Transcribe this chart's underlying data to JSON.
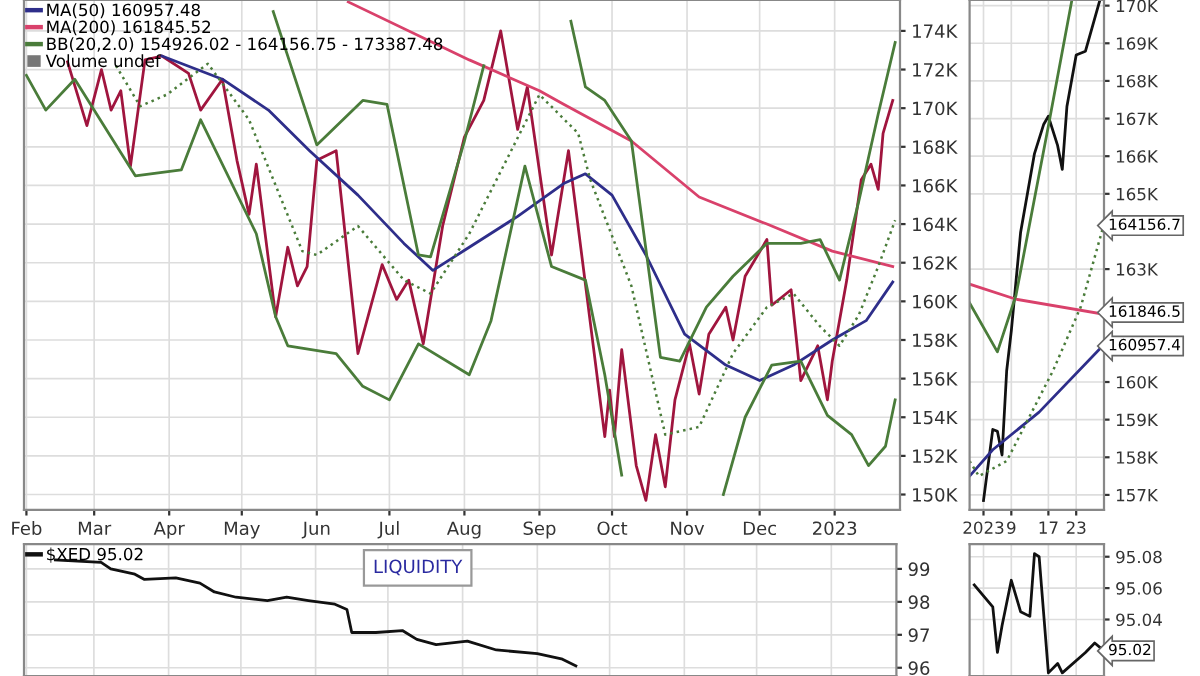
{
  "chart_data": [
    {
      "type": "line",
      "legend": "top left",
      "grid": true,
      "annotations": [
        "Volume undef"
      ],
      "xlim": [
        "2022-01-31",
        "2023-01-28"
      ],
      "xticks": [
        {
          "value": "2022-02-01",
          "label": "Feb"
        },
        {
          "value": "2022-03-01",
          "label": "Mar"
        },
        {
          "value": "2022-04-01",
          "label": "Apr"
        },
        {
          "value": "2022-05-01",
          "label": "May"
        },
        {
          "value": "2022-06-01",
          "label": "Jun"
        },
        {
          "value": "2022-07-01",
          "label": "Jul"
        },
        {
          "value": "2022-08-01",
          "label": "Aug"
        },
        {
          "value": "2022-09-01",
          "label": "Sep"
        },
        {
          "value": "2022-10-01",
          "label": "Oct"
        },
        {
          "value": "2022-11-01",
          "label": "Nov"
        },
        {
          "value": "2022-12-01",
          "label": "Dec"
        },
        {
          "value": "2023-01-01",
          "label": "2023"
        }
      ],
      "ylim": [
        149200,
        175600
      ],
      "yticks": [
        {
          "value": 150000,
          "label": "150K"
        },
        {
          "value": 152000,
          "label": "152K"
        },
        {
          "value": 154000,
          "label": "154K"
        },
        {
          "value": 156000,
          "label": "156K"
        },
        {
          "value": 158000,
          "label": "158K"
        },
        {
          "value": 160000,
          "label": "160K"
        },
        {
          "value": 162000,
          "label": "162K"
        },
        {
          "value": 164000,
          "label": "164K"
        },
        {
          "value": 166000,
          "label": "166K"
        },
        {
          "value": 168000,
          "label": "168K"
        },
        {
          "value": 170000,
          "label": "170K"
        },
        {
          "value": 172000,
          "label": "172K"
        },
        {
          "value": 174000,
          "label": "174K"
        }
      ],
      "series": [
        {
          "color": "#a0153e",
          "x": [
            "2022-02-18",
            "2022-02-26",
            "2022-03-04",
            "2022-03-08",
            "2022-03-12",
            "2022-03-16",
            "2022-03-22",
            "2022-03-29",
            "2022-04-09",
            "2022-04-14",
            "2022-04-23",
            "2022-04-29",
            "2022-05-04",
            "2022-05-07",
            "2022-05-15",
            "2022-05-20",
            "2022-05-24",
            "2022-05-28",
            "2022-06-01",
            "2022-06-09",
            "2022-06-18",
            "2022-06-28",
            "2022-07-04",
            "2022-07-09",
            "2022-07-15",
            "2022-07-23",
            "2022-08-01",
            "2022-08-09",
            "2022-08-16",
            "2022-08-23",
            "2022-08-27",
            "2022-09-06",
            "2022-09-13",
            "2022-09-28",
            "2022-09-30",
            "2022-10-02",
            "2022-10-05",
            "2022-10-11",
            "2022-10-15",
            "2022-10-19",
            "2022-10-23",
            "2022-10-27",
            "2022-11-02",
            "2022-11-06",
            "2022-11-10",
            "2022-11-17",
            "2022-11-20",
            "2022-11-25",
            "2022-12-04",
            "2022-12-06",
            "2022-12-14",
            "2022-12-18",
            "2022-12-25",
            "2022-12-29",
            "2022-12-31",
            "2023-01-06",
            "2023-01-12",
            "2023-01-16",
            "2023-01-19",
            "2023-01-21",
            "2023-01-25"
          ],
          "values": [
            172400,
            169100,
            172000,
            169900,
            170900,
            167000,
            172500,
            172700,
            171800,
            169900,
            171500,
            167300,
            164500,
            167100,
            159200,
            162800,
            160800,
            161800,
            167300,
            167800,
            157300,
            161900,
            160100,
            161100,
            157800,
            163900,
            168500,
            170400,
            174000,
            168900,
            171100,
            162400,
            167800,
            153000,
            155400,
            153000,
            157500,
            151500,
            149700,
            153100,
            150400,
            154900,
            157800,
            155200,
            158300,
            159700,
            158000,
            161300,
            163200,
            159800,
            160600,
            155900,
            157700,
            154900,
            156900,
            161100,
            166300,
            167100,
            165800,
            168700,
            170400
          ]
        },
        {
          "name": "MA(50) 160957.48",
          "color": "#2e2e8a",
          "x": [
            "2022-03-29",
            "2022-04-23",
            "2022-05-12",
            "2022-05-29",
            "2022-06-18",
            "2022-07-07",
            "2022-07-19",
            "2022-08-03",
            "2022-08-23",
            "2022-09-11",
            "2022-09-20",
            "2022-10-01",
            "2022-10-15",
            "2022-10-31",
            "2022-11-17",
            "2022-12-01",
            "2022-12-15",
            "2022-12-31",
            "2023-01-14",
            "2023-01-25"
          ],
          "values": [
            172700,
            171500,
            169900,
            167800,
            165500,
            163000,
            161600,
            162800,
            164400,
            166100,
            166600,
            165500,
            162400,
            158300,
            156700,
            155900,
            156700,
            158000,
            159000,
            161000
          ]
        },
        {
          "name": "MA(200) 161845.52",
          "color": "#d9416b",
          "x": [
            "2022-06-14",
            "2022-08-03",
            "2022-09-01",
            "2022-09-11",
            "2022-10-09",
            "2022-11-06",
            "2022-12-04",
            "2022-12-31",
            "2023-01-25"
          ],
          "values": [
            175500,
            172500,
            170900,
            170200,
            168300,
            165400,
            164000,
            162600,
            161800
          ]
        },
        {
          "name": "BB(20,2.0) 154926.02 - 164156.75 - 173387.48",
          "color": "#4a7c3a",
          "x": [
            "2022-05-14",
            "2022-06-01",
            "2022-06-20",
            "2022-06-30",
            "2022-07-13",
            "2022-07-18",
            "2022-08-01",
            "2022-08-09",
            "2022-08-20",
            "2022-09-14",
            "2022-09-20",
            "2022-09-28",
            "2022-10-09",
            "2022-10-21",
            "2022-10-29",
            "2022-11-09",
            "2022-11-20",
            "2022-12-04",
            "2022-12-18",
            "2022-12-26",
            "2023-01-03",
            "2023-01-11",
            "2023-01-19",
            "2023-01-26"
          ],
          "values": [
            175000,
            168100,
            170400,
            170200,
            162400,
            162300,
            168300,
            172200,
            null,
            174500,
            171100,
            170400,
            168300,
            157100,
            156900,
            159700,
            161300,
            163000,
            163000,
            163200,
            161100,
            165200,
            169700,
            173400
          ]
        },
        {
          "color": "#4a7c3a",
          "line_style": "dotted",
          "x": [
            "2022-03-10",
            "2022-03-20",
            "2022-03-31",
            "2022-04-17",
            "2022-05-04",
            "2022-05-26",
            "2022-06-01",
            "2022-06-18",
            "2022-07-07",
            "2022-07-18",
            "2022-08-03",
            "2022-09-01",
            "2022-09-17",
            "2022-09-22",
            "2022-10-09",
            "2022-10-23",
            "2022-11-06",
            "2022-11-20",
            "2022-12-04",
            "2022-12-15",
            "2022-12-26",
            "2023-01-03",
            "2023-01-11",
            "2023-01-19",
            "2023-01-26"
          ],
          "values": [
            172200,
            170100,
            170700,
            172300,
            169400,
            162600,
            162400,
            163900,
            161100,
            160400,
            163500,
            170700,
            168700,
            166300,
            160800,
            153100,
            153500,
            157300,
            159700,
            160400,
            158700,
            157700,
            159300,
            161800,
            164200
          ]
        },
        {
          "color": "#4a7c3a",
          "x": [
            "2022-02-01",
            "2022-02-09",
            "2022-02-21",
            "2022-03-18",
            "2022-04-06",
            "2022-04-14",
            "2022-05-07",
            "2022-05-15",
            "2022-05-20",
            "2022-06-09",
            "2022-06-20",
            "2022-07-01",
            "2022-07-13",
            "2022-08-03",
            "2022-08-12",
            "2022-08-26",
            "2022-09-06",
            "2022-09-20",
            "2022-09-28",
            "2022-10-05",
            "2022-10-15",
            "2022-11-11",
            "2022-11-16",
            "2022-11-25",
            "2022-12-06",
            "2022-12-18",
            "2022-12-29",
            "2023-01-08",
            "2023-01-15",
            "2023-01-22",
            "2023-01-26"
          ],
          "values": [
            171700,
            169900,
            171500,
            166500,
            166800,
            169400,
            163500,
            159200,
            157700,
            157300,
            155600,
            154900,
            157800,
            156200,
            159000,
            167000,
            161800,
            161100,
            156200,
            151000,
            null,
            null,
            150000,
            154000,
            156700,
            156900,
            154100,
            153100,
            151500,
            152500,
            154900
          ]
        }
      ]
    },
    {
      "type": "line",
      "grid": true,
      "xlim": [
        "2022-12-31",
        "2023-01-29"
      ],
      "xticks": [
        {
          "value": "2023-01-03",
          "label": "2023"
        },
        {
          "value": "2023-01-09",
          "label": "9"
        },
        {
          "value": "2023-01-17",
          "label": "17"
        },
        {
          "value": "2023-01-23",
          "label": "23"
        }
      ],
      "ylim": [
        156600,
        170150
      ],
      "yticks": [
        {
          "value": 157000,
          "label": "157K"
        },
        {
          "value": 158000,
          "label": "158K"
        },
        {
          "value": 159000,
          "label": "159K"
        },
        {
          "value": 160000,
          "label": "160K"
        },
        {
          "value": 163000,
          "label": "163K"
        },
        {
          "value": 165000,
          "label": "165K"
        },
        {
          "value": 166000,
          "label": "166K"
        },
        {
          "value": 167000,
          "label": "167K"
        },
        {
          "value": 168000,
          "label": "168K"
        },
        {
          "value": 169000,
          "label": "169K"
        },
        {
          "value": 170000,
          "label": "170K"
        }
      ],
      "annotations": [
        {
          "text": "164156.7",
          "x": "2023-01-29",
          "y": 164156.75
        },
        {
          "text": "161846.5",
          "x": "2023-01-29",
          "y": 161846.5
        },
        {
          "text": "160957.4",
          "x": "2023-01-29",
          "y": 160957.4
        }
      ],
      "series": [
        {
          "color": "#111111",
          "x": [
            "2023-01-03",
            "2023-01-05",
            "2023-01-06",
            "2023-01-07",
            "2023-01-08",
            "2023-01-09",
            "2023-01-11",
            "2023-01-14",
            "2023-01-16",
            "2023-01-17",
            "2023-01-19",
            "2023-01-20",
            "2023-01-21",
            "2023-01-23",
            "2023-01-25",
            "2023-01-28"
          ],
          "values": [
            156850,
            158740,
            158690,
            158060,
            160300,
            161360,
            163970,
            166070,
            166850,
            167060,
            166280,
            165650,
            167320,
            168690,
            168790,
            170100
          ]
        },
        {
          "color": "#2e2e8a",
          "x": [
            "2022-12-31",
            "2023-01-05",
            "2023-01-15",
            "2023-01-29"
          ],
          "values": [
            157500,
            158200,
            159200,
            161000
          ]
        },
        {
          "color": "#d9416b",
          "x": [
            "2022-12-31",
            "2023-01-10",
            "2023-01-29"
          ],
          "values": [
            162600,
            162200,
            161800
          ]
        },
        {
          "color": "#4a7c3a",
          "line_style": "dotted",
          "x": [
            "2022-12-31",
            "2023-01-02",
            "2023-01-08",
            "2023-01-18",
            "2023-01-24",
            "2023-01-29"
          ],
          "values": [
            157900,
            157500,
            157900,
            160300,
            162000,
            164200
          ]
        },
        {
          "color": "#4a7c3a",
          "x": [
            "2022-12-31",
            "2023-01-06",
            "2023-01-10",
            "2023-01-17",
            "2023-01-22"
          ],
          "values": [
            162100,
            160800,
            162300,
            166800,
            170100
          ]
        }
      ]
    },
    {
      "type": "line",
      "grid": true,
      "legend": "top left",
      "tick_labels": "y",
      "annotations": [
        "LIQUIDITY"
      ],
      "xlim": [
        "2022-01-31",
        "2023-01-28"
      ],
      "xticks": [
        {
          "value": "2022-02-01",
          "label": null
        },
        {
          "value": "2022-03-01",
          "label": null
        },
        {
          "value": "2022-04-01",
          "label": null
        },
        {
          "value": "2022-05-01",
          "label": null
        },
        {
          "value": "2022-06-01",
          "label": null
        },
        {
          "value": "2022-07-01",
          "label": null
        },
        {
          "value": "2022-08-01",
          "label": null
        },
        {
          "value": "2022-09-01",
          "label": null
        },
        {
          "value": "2022-10-01",
          "label": null
        },
        {
          "value": "2022-11-01",
          "label": null
        },
        {
          "value": "2022-12-01",
          "label": null
        },
        {
          "value": "2023-01-01",
          "label": null
        }
      ],
      "ylim": [
        95.75,
        99.75
      ],
      "yticks": [
        96,
        97,
        98,
        99
      ],
      "series": [
        {
          "name": "$XED 95.02",
          "color": "#111111",
          "x": [
            "2022-02-13",
            "2022-03-04",
            "2022-03-08",
            "2022-03-18",
            "2022-03-22",
            "2022-04-04",
            "2022-04-14",
            "2022-04-20",
            "2022-04-29",
            "2022-05-12",
            "2022-05-20",
            "2022-05-29",
            "2022-06-09",
            "2022-06-14",
            "2022-06-16",
            "2022-06-26",
            "2022-07-07",
            "2022-07-13",
            "2022-07-21",
            "2022-08-03",
            "2022-08-15",
            "2022-09-01",
            "2022-09-11",
            "2022-09-17"
          ],
          "values": [
            99.27,
            99.2,
            99.0,
            98.84,
            98.68,
            98.73,
            98.57,
            98.3,
            98.14,
            98.04,
            98.14,
            98.04,
            97.93,
            97.77,
            97.07,
            97.07,
            97.13,
            96.86,
            96.7,
            96.81,
            96.54,
            96.43,
            96.27,
            96.06
          ]
        }
      ]
    },
    {
      "type": "line",
      "grid": true,
      "tick_labels": "y",
      "xlim": [
        "2022-12-31",
        "2023-01-29"
      ],
      "xticks": [
        {
          "value": "2023-01-03",
          "label": null
        },
        {
          "value": "2023-01-09",
          "label": null
        },
        {
          "value": "2023-01-17",
          "label": null
        },
        {
          "value": "2023-01-23",
          "label": null
        }
      ],
      "ylim": [
        95.004,
        95.088
      ],
      "yticks": [
        95.04,
        95.06,
        95.08
      ],
      "annotations": [
        {
          "text": "95.02",
          "x": "2023-01-29",
          "y": 95.02
        }
      ],
      "series": [
        {
          "color": "#111111",
          "x": [
            "2023-01-01",
            "2023-01-05",
            "2023-01-06",
            "2023-01-07",
            "2023-01-09",
            "2023-01-11",
            "2023-01-13",
            "2023-01-14",
            "2023-01-15",
            "2023-01-17",
            "2023-01-19",
            "2023-01-20",
            "2023-01-25",
            "2023-01-27",
            "2023-01-29"
          ],
          "values": [
            95.062,
            95.048,
            95.019,
            95.036,
            95.065,
            95.045,
            95.042,
            95.082,
            95.08,
            95.006,
            95.012,
            95.006,
            95.019,
            95.025,
            95.02
          ]
        }
      ]
    }
  ]
}
